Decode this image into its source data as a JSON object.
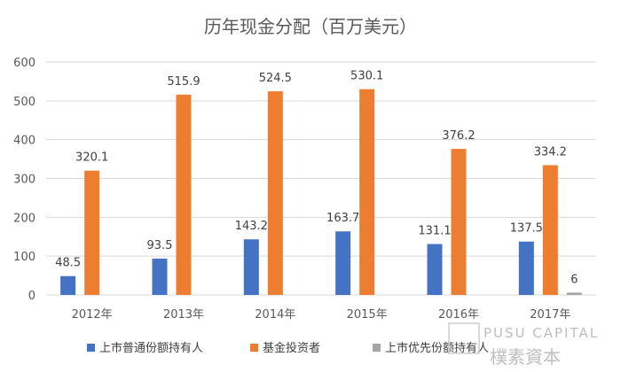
{
  "chart_data": {
    "type": "bar",
    "title": "历年现金分配（百万美元）",
    "categories": [
      "2012年",
      "2013年",
      "2014年",
      "2015年",
      "2016年",
      "2017年"
    ],
    "series": [
      {
        "name": "上市普通份额持有人",
        "values": [
          48.5,
          93.5,
          143.2,
          163.7,
          131.1,
          137.5
        ],
        "labels": [
          "48.5",
          "93.5",
          "143.2",
          "163.7",
          "131.1",
          "137.5"
        ],
        "color": "#4472c4"
      },
      {
        "name": "基金投资者",
        "values": [
          320.1,
          515.9,
          524.5,
          530.1,
          376.2,
          334.2
        ],
        "labels": [
          "320.1",
          "515.9",
          "524.5",
          "530.1",
          "376.2",
          "334.2"
        ],
        "color": "#ed7d31"
      },
      {
        "name": "上市优先份额持有人",
        "values": [
          null,
          null,
          null,
          null,
          null,
          6
        ],
        "labels": [
          "",
          "",
          "",
          "",
          "",
          "6"
        ],
        "color": "#a5a5a5"
      }
    ],
    "ylim": [
      0,
      600
    ],
    "yticks": [
      0,
      100,
      200,
      300,
      400,
      500,
      600
    ],
    "xlabel": "",
    "ylabel": "",
    "grid": true,
    "legend": "bottom"
  },
  "watermark": {
    "latin": "PUSU CAPITAL",
    "cjk": "樸素資本",
    "seal": "資本"
  }
}
